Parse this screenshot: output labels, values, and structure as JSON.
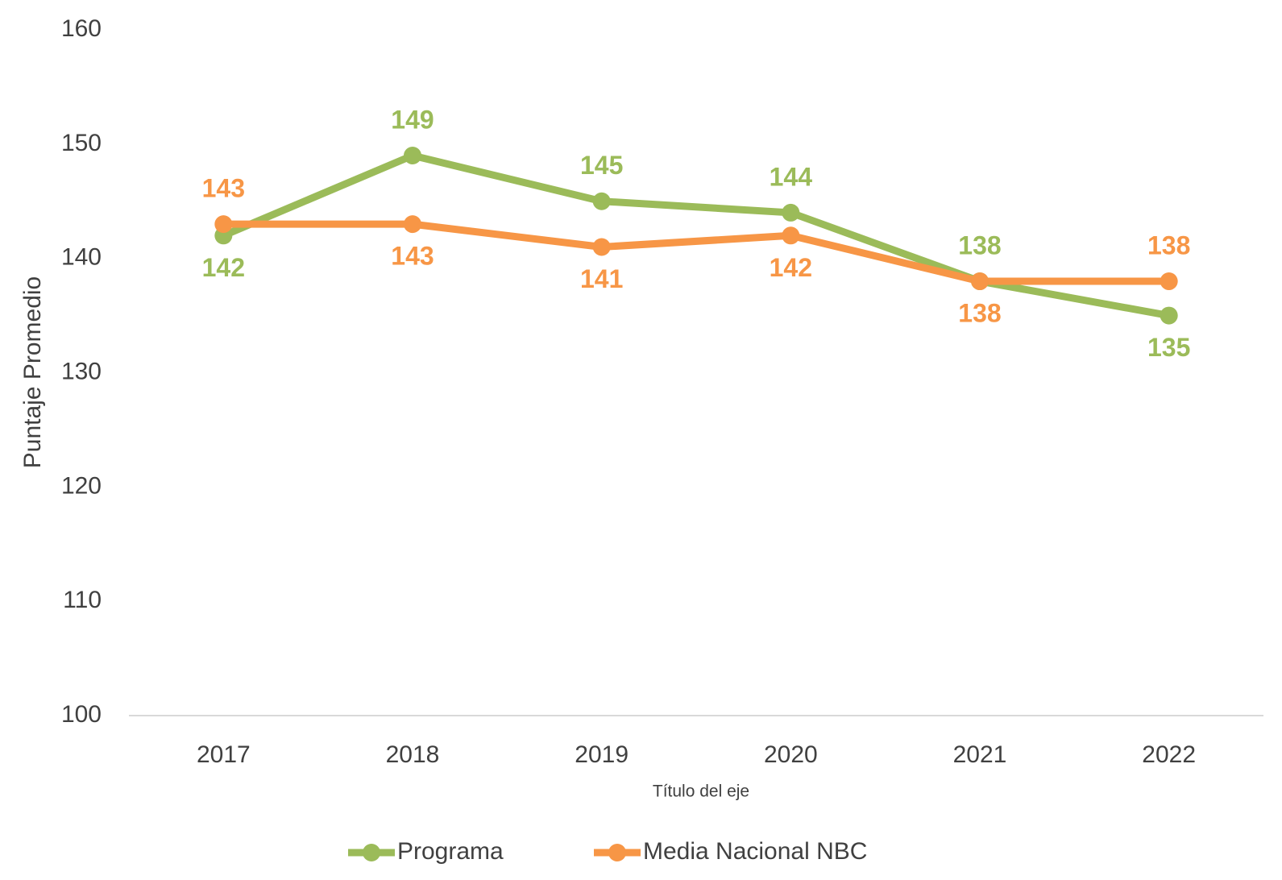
{
  "chart_data": {
    "type": "line",
    "categories": [
      "2017",
      "2018",
      "2019",
      "2020",
      "2021",
      "2022"
    ],
    "series": [
      {
        "name": "Programa",
        "color": "#9bbb59",
        "values": [
          142,
          149,
          145,
          144,
          138,
          135
        ]
      },
      {
        "name": "Media Nacional NBC",
        "color": "#f79646",
        "values": [
          143,
          143,
          141,
          142,
          138,
          138
        ]
      }
    ],
    "ylim": [
      100,
      160
    ],
    "yticks": [
      100,
      110,
      120,
      130,
      140,
      150,
      160
    ],
    "y_label": "Puntaje Promedio",
    "x_label": "Título del eje",
    "grid": false,
    "legend": "bottom"
  }
}
